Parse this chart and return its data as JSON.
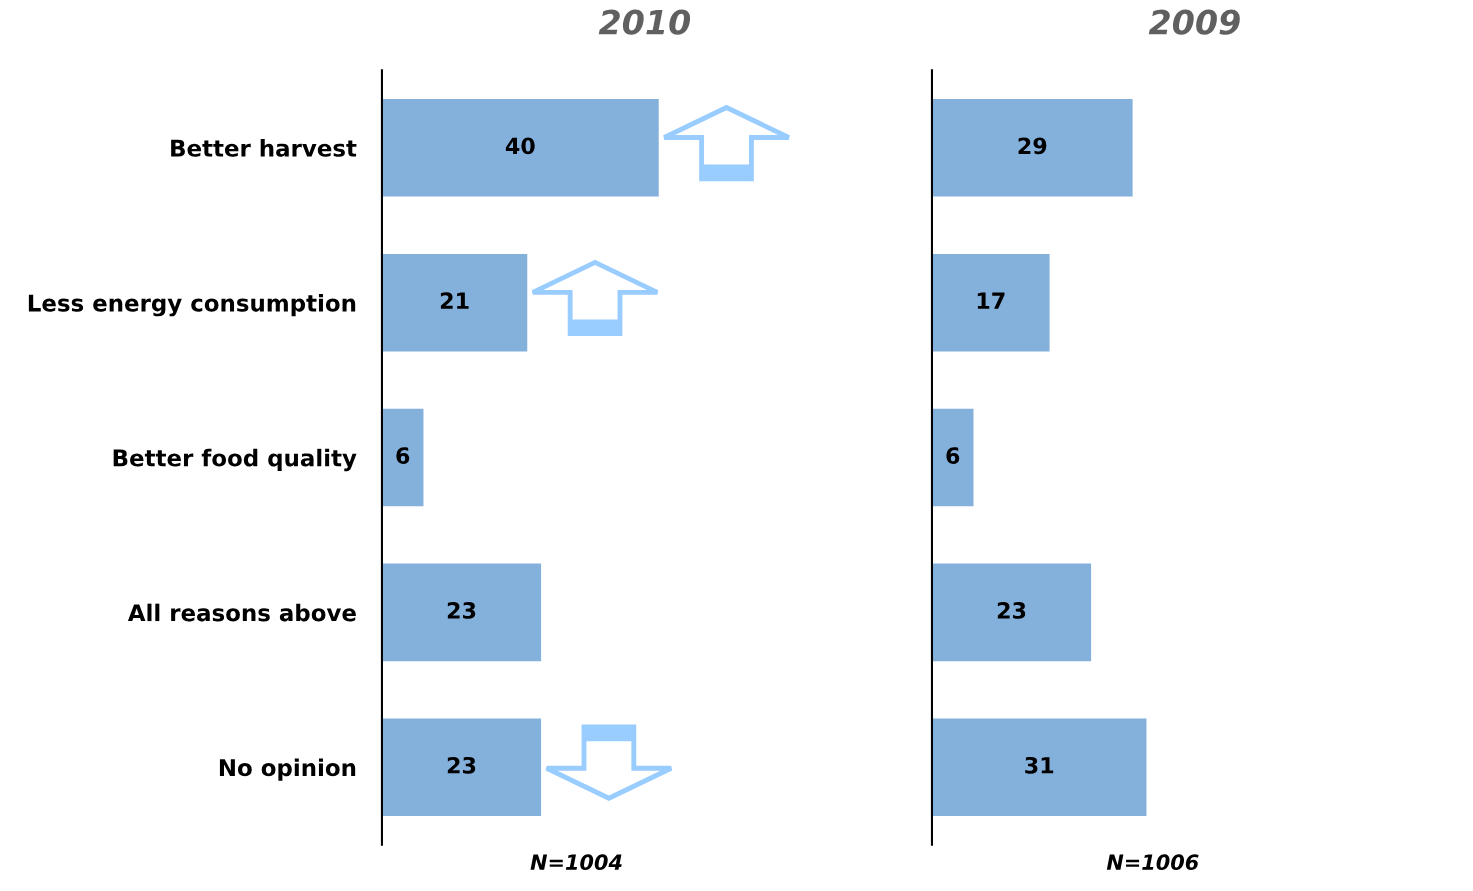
{
  "chart_data": [
    {
      "type": "bar",
      "orientation": "horizontal",
      "title": "2010",
      "categories": [
        "Better harvest",
        "Less energy consumption",
        "Better food quality",
        "All reasons above",
        "No opinion"
      ],
      "values": [
        40,
        21,
        6,
        23,
        23
      ],
      "color": "#84b0dc",
      "data_labels": true,
      "tick_labels": "y",
      "annotations": [
        "N=1004"
      ]
    },
    {
      "type": "bar",
      "orientation": "horizontal",
      "title": "2009",
      "categories": [
        null,
        null,
        null,
        null,
        null
      ],
      "values": [
        29,
        17,
        6,
        23,
        31
      ],
      "color": "#84b0dc",
      "data_labels": true,
      "tick_labels": false,
      "annotations": [
        "N=1006"
      ]
    }
  ]
}
